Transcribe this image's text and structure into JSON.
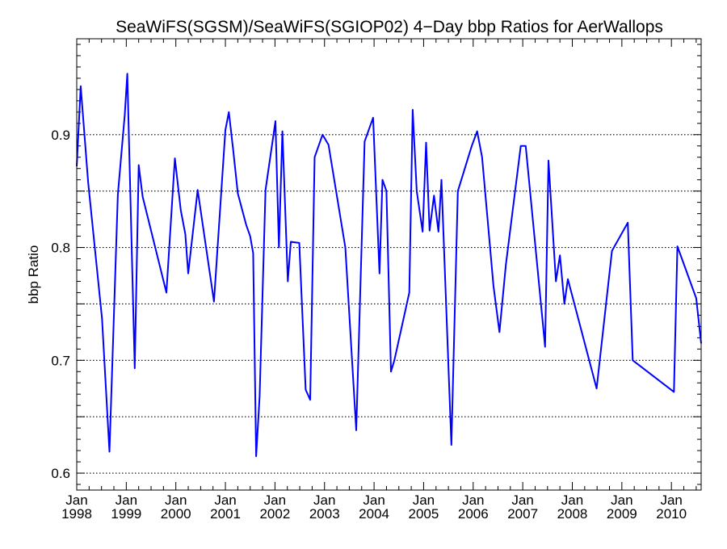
{
  "chart_data": {
    "type": "line",
    "title": "SeaWiFS(SGSM)/SeaWiFS(SGIOP02) 4−Day bbp Ratios for AerWallops",
    "xlabel": "",
    "ylabel": "bbp Ratio",
    "xlim": [
      1998.0,
      2010.6
    ],
    "ylim": [
      0.585,
      0.985
    ],
    "grid": "horizontal dotted at y ticks",
    "y_ticks": [
      0.6,
      0.65,
      0.7,
      0.75,
      0.8,
      0.85,
      0.9
    ],
    "y_tick_labels": [
      {
        "value": 0.6,
        "label": "0.6"
      },
      {
        "value": 0.7,
        "label": "0.7"
      },
      {
        "value": 0.8,
        "label": "0.8"
      },
      {
        "value": 0.9,
        "label": "0.9"
      }
    ],
    "x_tick_labels": [
      {
        "value": 1998,
        "month": "Jan",
        "year": "1998"
      },
      {
        "value": 1999,
        "month": "Jan",
        "year": "1999"
      },
      {
        "value": 2000,
        "month": "Jan",
        "year": "2000"
      },
      {
        "value": 2001,
        "month": "Jan",
        "year": "2001"
      },
      {
        "value": 2002,
        "month": "Jan",
        "year": "2002"
      },
      {
        "value": 2003,
        "month": "Jan",
        "year": "2003"
      },
      {
        "value": 2004,
        "month": "Jan",
        "year": "2004"
      },
      {
        "value": 2005,
        "month": "Jan",
        "year": "2005"
      },
      {
        "value": 2006,
        "month": "Jan",
        "year": "2006"
      },
      {
        "value": 2007,
        "month": "Jan",
        "year": "2007"
      },
      {
        "value": 2008,
        "month": "Jan",
        "year": "2008"
      },
      {
        "value": 2009,
        "month": "Jan",
        "year": "2009"
      },
      {
        "value": 2010,
        "month": "Jan",
        "year": "2010"
      }
    ],
    "series": [
      {
        "color": "#0000ff",
        "x": [
          1998.0,
          1998.08,
          1998.23,
          1998.51,
          1998.66,
          1998.83,
          1998.97,
          1999.02,
          1999.17,
          1999.25,
          1999.33,
          1999.81,
          1999.98,
          2000.1,
          2000.19,
          2000.25,
          2000.44,
          2000.77,
          2001.0,
          2001.07,
          2001.16,
          2001.25,
          2001.42,
          2001.5,
          2001.56,
          2001.62,
          2001.69,
          2001.81,
          2001.97,
          2002.01,
          2002.08,
          2002.15,
          2002.26,
          2002.32,
          2002.49,
          2002.62,
          2002.71,
          2002.8,
          2002.96,
          2003.08,
          2003.42,
          2003.64,
          2003.81,
          2003.98,
          2004.11,
          2004.17,
          2004.25,
          2004.34,
          2004.41,
          2004.71,
          2004.78,
          2004.86,
          2004.98,
          2005.05,
          2005.12,
          2005.21,
          2005.3,
          2005.36,
          2005.56,
          2005.69,
          2005.97,
          2006.08,
          2006.18,
          2006.41,
          2006.53,
          2006.66,
          2006.96,
          2007.06,
          2007.45,
          2007.52,
          2007.67,
          2007.75,
          2007.84,
          2007.91,
          2008.49,
          2008.8,
          2009.12,
          2009.22,
          2010.05,
          2010.12,
          2010.5,
          2010.6
        ],
        "values": [
          0.872,
          0.943,
          0.858,
          0.737,
          0.619,
          0.847,
          0.918,
          0.954,
          0.693,
          0.873,
          0.845,
          0.76,
          0.879,
          0.833,
          0.812,
          0.777,
          0.851,
          0.752,
          0.904,
          0.92,
          0.885,
          0.848,
          0.82,
          0.81,
          0.795,
          0.615,
          0.668,
          0.851,
          0.9,
          0.912,
          0.8,
          0.903,
          0.77,
          0.805,
          0.804,
          0.674,
          0.665,
          0.88,
          0.9,
          0.891,
          0.8,
          0.638,
          0.894,
          0.915,
          0.777,
          0.86,
          0.85,
          0.69,
          0.7,
          0.76,
          0.922,
          0.85,
          0.814,
          0.893,
          0.815,
          0.846,
          0.814,
          0.86,
          0.625,
          0.85,
          0.89,
          0.903,
          0.88,
          0.766,
          0.725,
          0.785,
          0.89,
          0.89,
          0.712,
          0.877,
          0.77,
          0.793,
          0.75,
          0.772,
          0.675,
          0.797,
          0.822,
          0.7,
          0.672,
          0.801,
          0.755,
          0.715
        ]
      }
    ]
  }
}
